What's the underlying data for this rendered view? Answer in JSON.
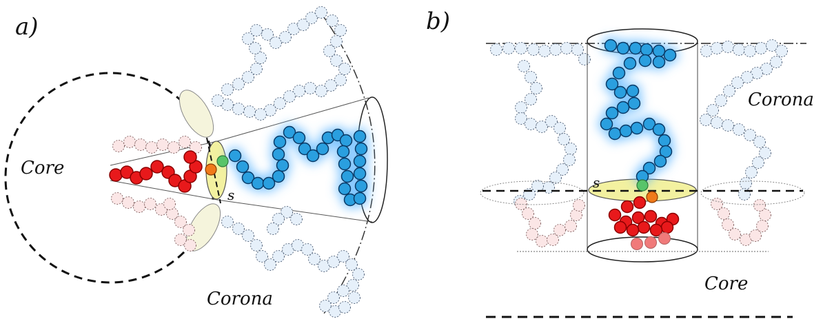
{
  "panel_a": {
    "label": "a)",
    "core_label": "Core",
    "corona_label": "Corona",
    "s_label": "s"
  },
  "panel_b": {
    "label": "b)",
    "core_label": "Core",
    "corona_label": "Corona",
    "s_label": "s"
  },
  "colors": {
    "core_bead": "#e8191b",
    "core_bead_stroke": "#8a0000",
    "corona_bead": "#2a9fdf",
    "corona_bead_stroke": "#0a3a66",
    "glow": "#58b2ff",
    "background_core_bead": "#fbe6e6",
    "background_corona_bead": "#e6f0fa",
    "junction_green": "#58c46a",
    "junction_orange": "#f07a1a",
    "interface_fill": "#f3f1a0",
    "faded_core_bead": "#f07a7a"
  }
}
